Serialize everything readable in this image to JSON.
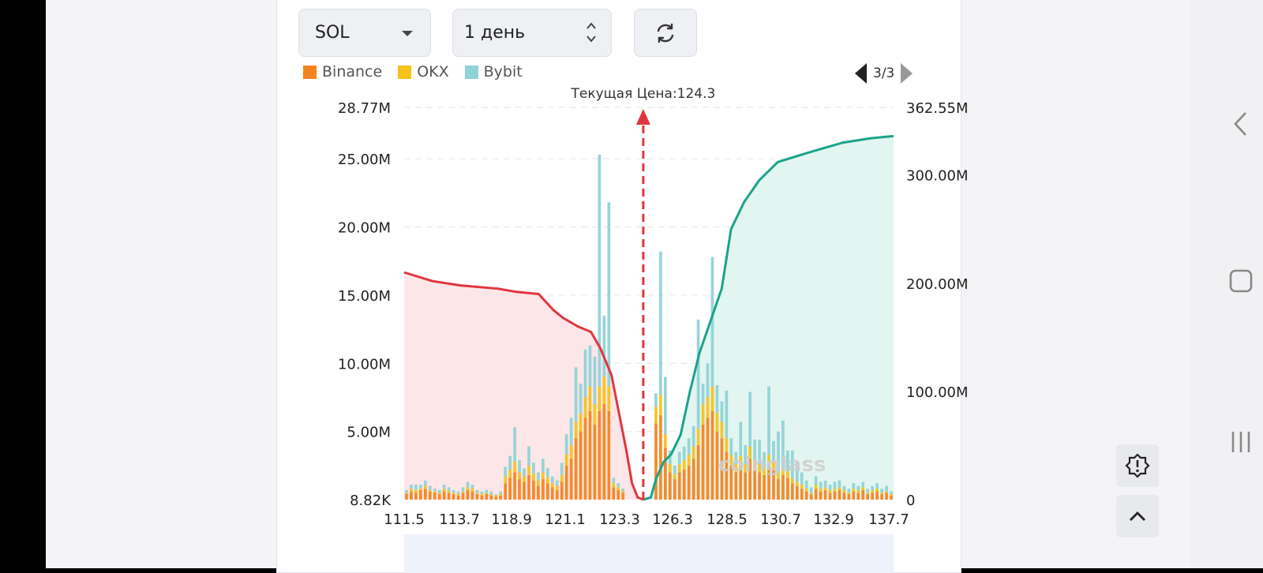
{
  "controls": {
    "coin_value": "SOL",
    "period_value": "1 день"
  },
  "legend": [
    {
      "label": "Binance",
      "color": "#f5841f"
    },
    {
      "label": "OKX",
      "color": "#f7c21a"
    },
    {
      "label": "Bybit",
      "color": "#8fd3d6"
    }
  ],
  "pager": {
    "label": "3/3"
  },
  "colors": {
    "short": "#e0363f",
    "long": "#1aa38a",
    "short_fill": "#fde6e8",
    "long_fill": "#e3f5f0"
  },
  "chart_data": {
    "type": "bar",
    "title": "Текущая Цена:124.3",
    "current_price": 124.3,
    "watermark": "coinglass",
    "x_ticks": [
      "111.5",
      "113.7",
      "118.9",
      "121.1",
      "123.3",
      "126.3",
      "128.5",
      "130.7",
      "132.9",
      "137.7"
    ],
    "x_range": [
      111.5,
      137.7
    ],
    "y_left": {
      "ticks": [
        "8.82K",
        "5.00M",
        "10.00M",
        "15.00M",
        "20.00M",
        "25.00M",
        "28.77M"
      ],
      "range": [
        0,
        28.77
      ]
    },
    "y_right": {
      "ticks": [
        "0",
        "100.00M",
        "200.00M",
        "300.00M",
        "362.55M"
      ],
      "range": [
        0,
        362.55
      ]
    },
    "series": [
      {
        "name": "Binance",
        "values": [
          0.4,
          0.6,
          0.5,
          0.7,
          0.8,
          0.6,
          0.5,
          0.4,
          0.6,
          0.5,
          0.4,
          0.3,
          0.5,
          0.7,
          0.6,
          0.4,
          0.3,
          0.4,
          0.3,
          0.2,
          0.3,
          1.2,
          1.6,
          2.0,
          1.5,
          1.3,
          1.8,
          1.4,
          1.0,
          1.5,
          1.2,
          0.9,
          0.7,
          1.3,
          2.5,
          3.0,
          4.5,
          5.0,
          6.0,
          6.5,
          5.5,
          6.5,
          7.0,
          6.5,
          0.9,
          0.7,
          0.5,
          0,
          0,
          0,
          0,
          0,
          0,
          5.6,
          6.2,
          3.8,
          2.0,
          1.5,
          2.0,
          2.2,
          2.5,
          3.0,
          4.0,
          5.5,
          6.0,
          6.5,
          5.0,
          4.5,
          3.5,
          2.5,
          2.0,
          2.5,
          2.0,
          3.0,
          2.2,
          2.0,
          1.8,
          2.5,
          2.2,
          1.5,
          1.8,
          1.6,
          1.2,
          1.0,
          0.8,
          0.6,
          0.4,
          0.8,
          0.6,
          0.7,
          0.5,
          0.6,
          0.7,
          0.5,
          0.4,
          0.6,
          0.5,
          0.7,
          0.4,
          0.5,
          0.6,
          0.4,
          0.5,
          0.3
        ]
      },
      {
        "name": "OKX",
        "values": [
          0.1,
          0.2,
          0.2,
          0.1,
          0.2,
          0.1,
          0.1,
          0.1,
          0.2,
          0.1,
          0.1,
          0.1,
          0.1,
          0.2,
          0.2,
          0.1,
          0.1,
          0.1,
          0.1,
          0.1,
          0.1,
          0.5,
          0.6,
          0.8,
          0.5,
          0.4,
          0.7,
          0.5,
          0.4,
          0.5,
          0.4,
          0.3,
          0.3,
          0.5,
          0.8,
          1.0,
          1.2,
          1.3,
          1.5,
          1.8,
          1.5,
          1.8,
          2.0,
          1.8,
          0.3,
          0.2,
          0.1,
          0,
          0,
          0,
          0,
          0,
          0,
          1.2,
          1.5,
          1.0,
          0.6,
          0.4,
          0.6,
          0.7,
          0.8,
          0.9,
          1.2,
          1.5,
          1.5,
          1.8,
          1.4,
          1.2,
          1.0,
          0.8,
          0.6,
          0.7,
          0.6,
          0.9,
          0.7,
          0.6,
          0.5,
          0.8,
          0.6,
          0.5,
          0.5,
          0.5,
          0.4,
          0.3,
          0.3,
          0.2,
          0.1,
          0.3,
          0.2,
          0.2,
          0.2,
          0.2,
          0.2,
          0.2,
          0.1,
          0.2,
          0.2,
          0.2,
          0.1,
          0.2,
          0.2,
          0.1,
          0.1,
          0.1
        ]
      },
      {
        "name": "Bybit",
        "values": [
          0.2,
          0.3,
          0.4,
          0.3,
          0.4,
          0.3,
          0.2,
          0.2,
          0.3,
          0.3,
          0.2,
          0.2,
          0.3,
          0.4,
          0.3,
          0.2,
          0.2,
          0.2,
          0.2,
          0.1,
          0.2,
          0.7,
          1.0,
          2.5,
          0.9,
          0.6,
          1.4,
          0.8,
          0.6,
          1.0,
          0.7,
          0.5,
          0.4,
          0.9,
          1.5,
          2.0,
          4.0,
          2.2,
          3.5,
          3.0,
          3.5,
          17.0,
          4.5,
          13.5,
          0.4,
          0.3,
          0.2,
          0,
          0,
          0,
          0,
          0,
          0,
          1.0,
          10.5,
          4.2,
          1.0,
          0.6,
          0.9,
          1.0,
          1.2,
          1.5,
          8.0,
          1.5,
          2.5,
          9.5,
          2.0,
          1.5,
          3.5,
          1.2,
          0.9,
          2.5,
          1.4,
          4.0,
          1.5,
          1.8,
          1.2,
          5.0,
          1.5,
          3.0,
          3.5,
          1.5,
          2.0,
          1.5,
          0.9,
          0.6,
          0.4,
          0.6,
          0.5,
          0.5,
          0.4,
          0.5,
          0.5,
          0.3,
          0.3,
          0.4,
          0.3,
          0.4,
          0.3,
          0.3,
          0.4,
          0.3,
          0.4,
          0.2
        ]
      }
    ],
    "short_cumulative": [
      [
        111.5,
        210
      ],
      [
        113.0,
        202
      ],
      [
        114.5,
        198
      ],
      [
        116.5,
        195
      ],
      [
        117.5,
        192
      ],
      [
        118.7,
        190
      ],
      [
        119.5,
        175
      ],
      [
        120.0,
        168
      ],
      [
        120.8,
        160
      ],
      [
        121.5,
        155
      ],
      [
        122.0,
        140
      ],
      [
        122.6,
        115
      ],
      [
        123.0,
        80
      ],
      [
        123.4,
        45
      ],
      [
        123.7,
        15
      ],
      [
        124.0,
        2
      ],
      [
        124.3,
        0
      ]
    ],
    "long_cumulative": [
      [
        124.3,
        0
      ],
      [
        124.7,
        2
      ],
      [
        125.0,
        20
      ],
      [
        125.4,
        35
      ],
      [
        125.8,
        42
      ],
      [
        126.3,
        60
      ],
      [
        126.8,
        100
      ],
      [
        127.3,
        135
      ],
      [
        127.9,
        165
      ],
      [
        128.5,
        195
      ],
      [
        129.0,
        250
      ],
      [
        129.7,
        275
      ],
      [
        130.5,
        295
      ],
      [
        131.5,
        312
      ],
      [
        133.0,
        320
      ],
      [
        135.0,
        330
      ],
      [
        136.5,
        334
      ],
      [
        137.7,
        336
      ]
    ]
  }
}
